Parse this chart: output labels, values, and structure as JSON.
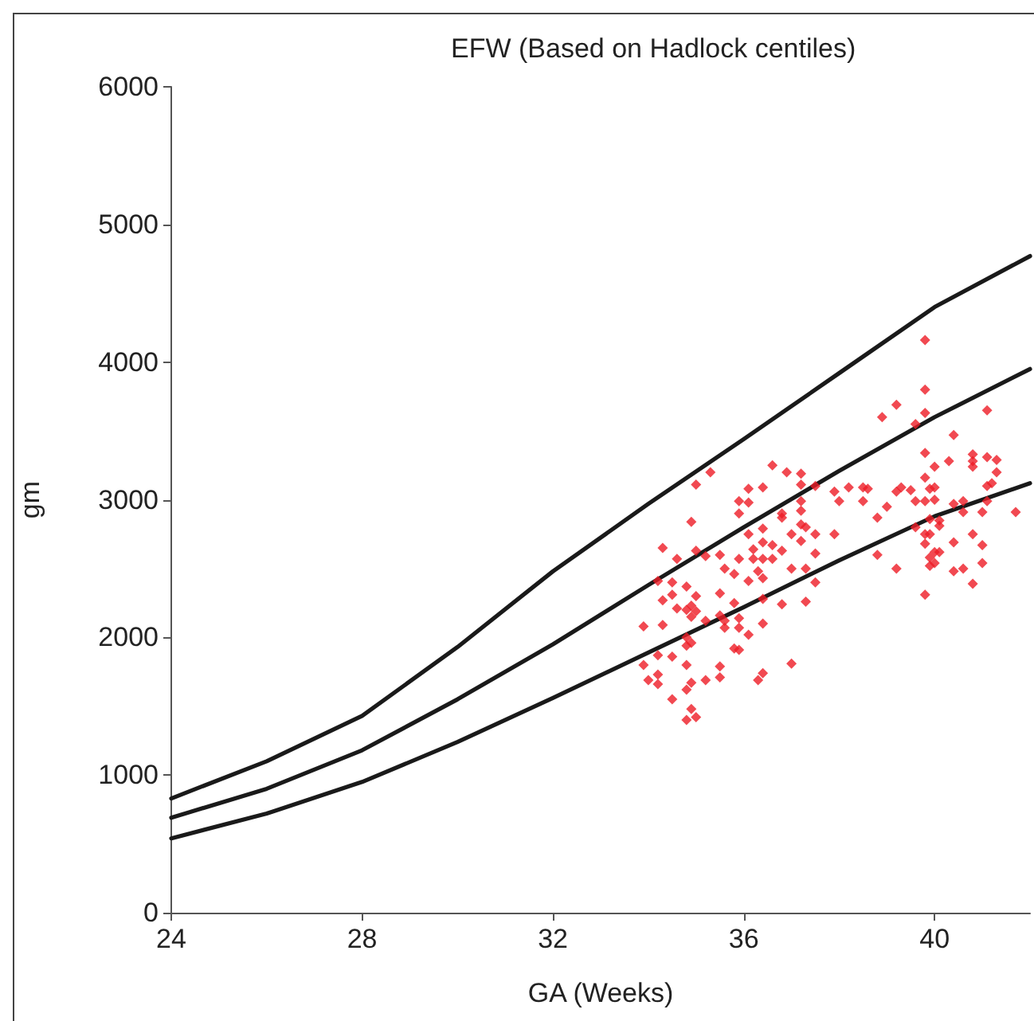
{
  "chart_data": {
    "type": "line",
    "title": "EFW (Based on Hadlock centiles)",
    "xlabel": "GA (Weeks)",
    "ylabel": "gm",
    "xlim": [
      24,
      42
    ],
    "xticks": [
      24,
      28,
      32,
      36,
      40
    ],
    "ylim": [
      0,
      6000
    ],
    "yticks": [
      0,
      1000,
      2000,
      3000,
      4000,
      5000,
      6000
    ],
    "grid": false,
    "series": [
      {
        "color": "#1a1a1a",
        "marker": "none",
        "line_style": "solid",
        "x": [
          24,
          26,
          28,
          30,
          32,
          34,
          36,
          38,
          40,
          42
        ],
        "values": [
          830,
          1100,
          1430,
          1930,
          2480,
          2970,
          3440,
          3920,
          4400,
          4770
        ]
      },
      {
        "color": "#1a1a1a",
        "marker": "none",
        "line_style": "solid",
        "x": [
          24,
          26,
          28,
          30,
          32,
          34,
          36,
          38,
          40,
          42
        ],
        "values": [
          690,
          900,
          1180,
          1550,
          1950,
          2380,
          2800,
          3210,
          3600,
          3950
        ]
      },
      {
        "color": "#1a1a1a",
        "marker": "none",
        "line_style": "solid",
        "x": [
          24,
          26,
          28,
          30,
          32,
          34,
          36,
          38,
          40,
          42
        ],
        "values": [
          540,
          720,
          950,
          1240,
          1560,
          1890,
          2220,
          2560,
          2880,
          3120
        ]
      },
      {
        "type": "scatter",
        "marker": "diamond",
        "color": "#ee1c25",
        "x": [
          35.3,
          35.0,
          36.6,
          36.9,
          37.2,
          37.5,
          36.1,
          36.4,
          37.2,
          35.9,
          36.1,
          37.2,
          35.9,
          36.8,
          37.2,
          34.9,
          36.1,
          36.4,
          36.8,
          37.2,
          37.3,
          37.5,
          37.0,
          37.2,
          34.3,
          34.6,
          35.0,
          35.2,
          35.5,
          35.9,
          36.2,
          36.2,
          36.4,
          36.6,
          36.8,
          36.4,
          36.6,
          35.6,
          35.8,
          36.3,
          36.4,
          36.1,
          37.0,
          37.5,
          37.3,
          34.2,
          34.5,
          34.8,
          34.3,
          34.5,
          35.0,
          35.5,
          35.8,
          36.4,
          36.8,
          37.3,
          34.6,
          34.8,
          34.9,
          35.0,
          34.9,
          35.2,
          35.5,
          35.6,
          35.9,
          35.6,
          35.9,
          36.1,
          36.4,
          33.9,
          34.3,
          34.8,
          34.8,
          34.9,
          35.8,
          35.9,
          33.9,
          34.2,
          34.5,
          34.8,
          35.5,
          35.5,
          35.2,
          34.9,
          34.0,
          34.2,
          34.2,
          37.0,
          36.4,
          36.3,
          34.5,
          34.8,
          34.9,
          34.8,
          35.0,
          39.8,
          39.8,
          39.2,
          38.9,
          39.8,
          39.6,
          41.1,
          40.4,
          39.8,
          40.0,
          40.3,
          40.8,
          40.8,
          40.8,
          41.1,
          41.3,
          41.3,
          41.2,
          41.1,
          39.8,
          37.9,
          38.0,
          38.2,
          38.5,
          38.6,
          38.5,
          39.2,
          39.3,
          39.5,
          39.9,
          40.0,
          39.6,
          39.8,
          40.0,
          39.0,
          38.8,
          40.4,
          40.6,
          41.1,
          41.0,
          40.6,
          41.7,
          39.9,
          40.1,
          40.1,
          37.9,
          39.6,
          39.8,
          39.9,
          40.8,
          39.8,
          40.0,
          40.1,
          39.9,
          40.4,
          41.0,
          38.8,
          40.0,
          39.9,
          39.2,
          40.4,
          40.6,
          41.0,
          40.8,
          37.5,
          39.8
        ],
        "values": [
          3200,
          3110,
          3250,
          3200,
          3190,
          3100,
          3080,
          3090,
          3110,
          2990,
          2980,
          2990,
          2900,
          2900,
          2920,
          2840,
          2750,
          2790,
          2870,
          2820,
          2800,
          2750,
          2750,
          2700,
          2650,
          2570,
          2630,
          2590,
          2600,
          2570,
          2640,
          2570,
          2690,
          2670,
          2630,
          2570,
          2570,
          2500,
          2460,
          2480,
          2430,
          2410,
          2500,
          2610,
          2500,
          2410,
          2400,
          2370,
          2270,
          2310,
          2300,
          2320,
          2250,
          2280,
          2240,
          2260,
          2210,
          2200,
          2230,
          2190,
          2150,
          2120,
          2160,
          2120,
          2140,
          2070,
          2070,
          2020,
          2100,
          2080,
          2090,
          2000,
          1940,
          1960,
          1920,
          1910,
          1800,
          1870,
          1860,
          1800,
          1790,
          1710,
          1690,
          1670,
          1690,
          1660,
          1730,
          1810,
          1740,
          1690,
          1550,
          1620,
          1480,
          1400,
          1420,
          4160,
          3800,
          3690,
          3600,
          3630,
          3550,
          3650,
          3470,
          3340,
          3240,
          3280,
          3280,
          3240,
          3330,
          3310,
          3290,
          3200,
          3120,
          3100,
          3160,
          3060,
          2990,
          3090,
          3090,
          3080,
          2990,
          3060,
          3090,
          3070,
          3080,
          3090,
          2990,
          2990,
          3000,
          2950,
          2870,
          2970,
          2990,
          2990,
          2910,
          2910,
          2910,
          2860,
          2850,
          2810,
          2750,
          2800,
          2750,
          2750,
          2750,
          2680,
          2620,
          2620,
          2580,
          2690,
          2670,
          2600,
          2540,
          2520,
          2500,
          2480,
          2500,
          2540,
          2390,
          2400,
          2310
        ]
      }
    ]
  }
}
